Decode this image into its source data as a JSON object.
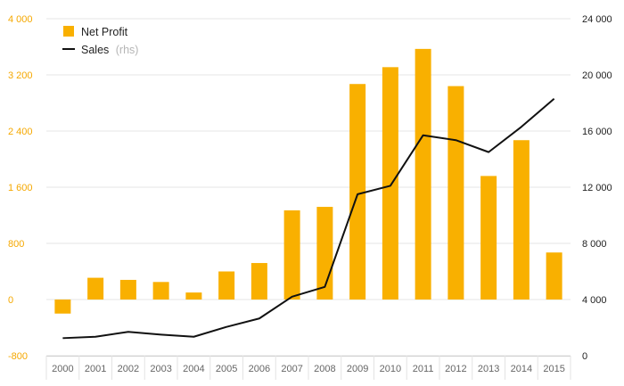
{
  "chart_data": {
    "type": "bar",
    "categories": [
      "2000",
      "2001",
      "2002",
      "2003",
      "2004",
      "2005",
      "2006",
      "2007",
      "2008",
      "2009",
      "2010",
      "2011",
      "2012",
      "2013",
      "2014",
      "2015"
    ],
    "series": [
      {
        "name": "Net Profit",
        "type": "bar",
        "axis": "left",
        "color": "#f9b000",
        "values": [
          -200,
          310,
          280,
          250,
          100,
          400,
          520,
          1270,
          1320,
          3070,
          3310,
          3570,
          3040,
          1760,
          2270,
          670
        ]
      },
      {
        "name": "Sales",
        "name_suffix": "(rhs)",
        "type": "line",
        "axis": "right",
        "color": "#111111",
        "values": [
          1250,
          1350,
          1700,
          1500,
          1350,
          2050,
          2650,
          4200,
          4900,
          11500,
          12100,
          15700,
          15350,
          14500,
          16300,
          18300
        ]
      }
    ],
    "left_axis": {
      "ylim": [
        -800,
        4000
      ],
      "ticks": [
        "-800",
        "0",
        "800",
        "1 600",
        "2 400",
        "3 200",
        "4 000"
      ],
      "tick_values": [
        -800,
        0,
        800,
        1600,
        2400,
        3200,
        4000
      ],
      "color": "#f5a800"
    },
    "right_axis": {
      "ylim": [
        0,
        24000
      ],
      "ticks": [
        "0",
        "4 000",
        "8 000",
        "12 000",
        "16 000",
        "20 000",
        "24 000"
      ],
      "tick_values": [
        0,
        4000,
        8000,
        12000,
        16000,
        20000,
        24000
      ],
      "color": "#222222"
    },
    "grid": true,
    "legend_position": "top-left"
  }
}
